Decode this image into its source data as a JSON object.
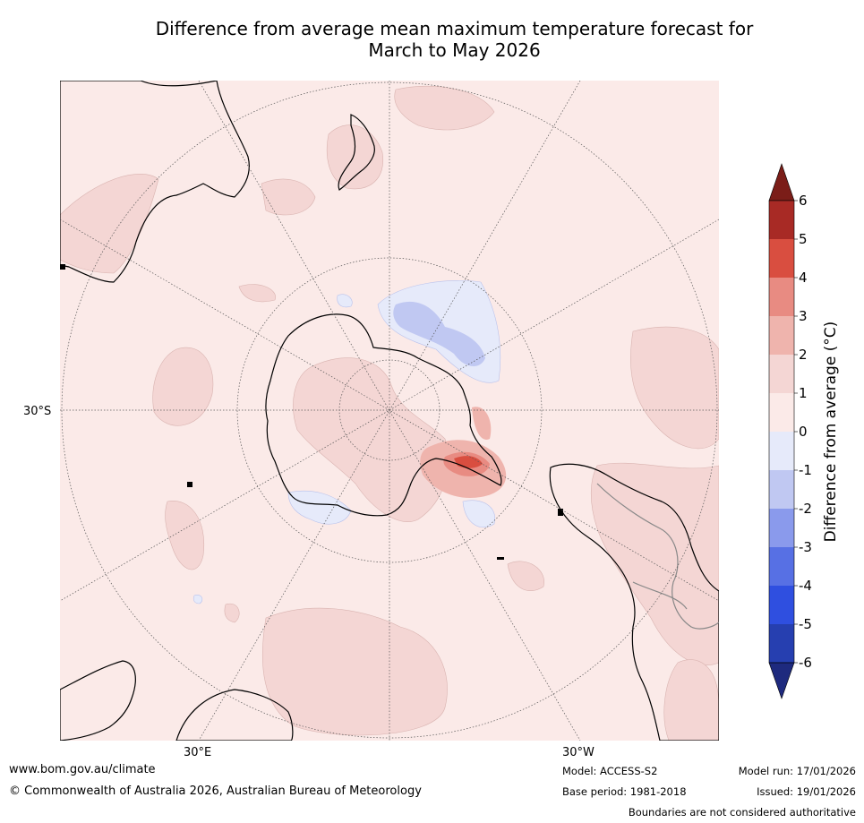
{
  "title": {
    "line1": "Difference from average mean maximum temperature forecast for",
    "line2": "March to May 2026"
  },
  "map": {
    "projection": "south-polar-stereographic",
    "lat_label": "30°S",
    "lon_labels": [
      "30°E",
      "30°W"
    ],
    "colors": {
      "background": "#fbeae8",
      "land": "#000000",
      "grid": "#555555"
    }
  },
  "colorbar": {
    "label": "Difference from average (°C)",
    "ticks": [
      "6",
      "5",
      "4",
      "3",
      "2",
      "1",
      "0",
      "-1",
      "-2",
      "-3",
      "-4",
      "-5",
      "-6"
    ],
    "colors": {
      "above_6": "#7b1d18",
      "5_6": "#a82a25",
      "4_5": "#d94e40",
      "3_4": "#e88b82",
      "2_3": "#efb4ad",
      "1_2": "#f4d6d4",
      "0_1": "#fbeae8",
      "m1_0": "#e6eafa",
      "m2_m1": "#c0c8f2",
      "m3_m2": "#8a9aec",
      "m4_m3": "#5770e4",
      "m5_m4": "#2f4fe0",
      "m6_m5": "#263fb0",
      "below_m6": "#1e2a7e"
    }
  },
  "footer": {
    "url": "www.bom.gov.au/climate",
    "copyright": "© Commonwealth of Australia 2026, Australian Bureau of Meteorology",
    "model": "Model: ACCESS-S2",
    "base_period": "Base period: 1981-2018",
    "model_run": "Model run: 17/01/2026",
    "issued": "Issued: 19/01/2026",
    "disclaimer": "Boundaries are not considered authoritative"
  }
}
